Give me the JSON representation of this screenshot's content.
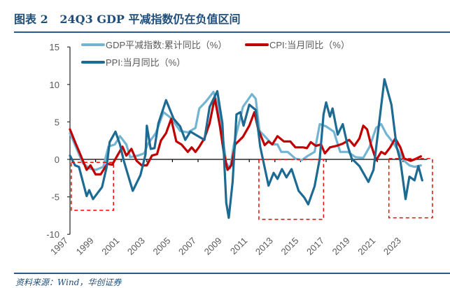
{
  "title": "图表 2   24Q3 GDP 平减指数仍在负值区间",
  "source": "资料来源：Wind，华创证券",
  "chart_data": {
    "type": "line",
    "title": "24Q3 GDP 平减指数仍在负值区间",
    "xlabel": "",
    "ylabel": "",
    "xlim": [
      1997,
      2025
    ],
    "ylim": [
      -10,
      15
    ],
    "yticks": [
      "15",
      "10",
      "5",
      "0",
      "-5",
      "-10"
    ],
    "ytick_values": [
      15,
      10,
      5,
      0,
      -5,
      -10
    ],
    "xticks": [
      "1997",
      "1999",
      "2001",
      "2003",
      "2005",
      "2007",
      "2009",
      "2011",
      "2013",
      "2015",
      "2017",
      "2019",
      "2021",
      "2023"
    ],
    "xtick_values": [
      1997,
      1999,
      2001,
      2003,
      2005,
      2007,
      2009,
      2011,
      2013,
      2015,
      2017,
      2019,
      2021,
      2023
    ],
    "legend_position": "top-left",
    "series": [
      {
        "name": "GDP平减指数:累计同比（%）",
        "color": "#74b4d3",
        "x": [
          1997,
          1997.5,
          1998,
          1998.5,
          1999,
          1999.6,
          2000,
          2000.5,
          2000.9,
          2001.4,
          2001.7,
          2002.3,
          2002.8,
          2003.1,
          2003.7,
          2004.3,
          2004.9,
          2005.6,
          2006.2,
          2006.8,
          2007.1,
          2007.6,
          2008.2,
          2008.6,
          2008.9,
          2009.2,
          2009.5,
          2009.8,
          2010.5,
          2011.2,
          2011.5,
          2011.8,
          2012.2,
          2012.8,
          2013.2,
          2013.5,
          2014.0,
          2014.6,
          2015.1,
          2015.6,
          2016.1,
          2016.5,
          2017.0,
          2017.6,
          2018.1,
          2018.7,
          2019.3,
          2019.9,
          2020.4,
          2020.9,
          2021.3,
          2021.7,
          2022.2,
          2022.7,
          2023.1,
          2023.5,
          2023.9,
          2024.4
        ],
        "values": [
          3.5,
          1.5,
          -0.5,
          -1.2,
          -1.4,
          -1.0,
          1.7,
          2.0,
          3.1,
          2.0,
          0.3,
          0.5,
          0.8,
          2.1,
          3.5,
          6.3,
          5.5,
          3.8,
          3.6,
          4.2,
          6.8,
          7.7,
          9.0,
          7.0,
          3.3,
          -0.5,
          -1.2,
          2.0,
          7.0,
          8.7,
          8.1,
          3.8,
          3.1,
          2.0,
          2.0,
          1.0,
          1.0,
          0.1,
          -0.1,
          0.5,
          1.0,
          4.7,
          4.4,
          3.7,
          1.0,
          1.0,
          0.3,
          0.2,
          1.7,
          4.2,
          4.7,
          3.4,
          2.3,
          1.0,
          -0.2,
          -0.8,
          -1.0,
          -0.8
        ]
      },
      {
        "name": "CPI:当月同比（%）",
        "color": "#c00000",
        "x": [
          1997,
          1997.4,
          1997.8,
          1998.3,
          1998.6,
          1999,
          1999.4,
          1999.9,
          2000.3,
          2000.7,
          2001.1,
          2001.4,
          2001.8,
          2002.2,
          2002.6,
          2003.0,
          2003.4,
          2003.8,
          2004.1,
          2004.5,
          2004.9,
          2005.3,
          2005.7,
          2006.2,
          2006.5,
          2006.8,
          2007.1,
          2007.5,
          2007.9,
          2008.3,
          2008.7,
          2009.0,
          2009.3,
          2009.6,
          2009.9,
          2010.5,
          2011.0,
          2011.4,
          2011.7,
          2012.2,
          2012.5,
          2012.8,
          2013.2,
          2013.7,
          2014.2,
          2014.6,
          2015.2,
          2015.5,
          2015.8,
          2016.2,
          2016.6,
          2016.9,
          2017.3,
          2017.8,
          2018.3,
          2018.8,
          2019.2,
          2019.6,
          2019.9,
          2020.2,
          2020.5,
          2020.9,
          2021.3,
          2021.6,
          2022.0,
          2022.4,
          2022.8,
          2023.1,
          2023.6,
          2023.9,
          2024.4
        ],
        "values": [
          4.0,
          2.3,
          0.7,
          -1.4,
          -0.8,
          -2.0,
          -2.0,
          -0.6,
          -0.7,
          0.5,
          1.7,
          0.5,
          1.4,
          -0.2,
          -0.8,
          -0.8,
          0.5,
          0.7,
          2.5,
          3.5,
          5.4,
          2.4,
          2.0,
          1.0,
          1.6,
          1.0,
          1.7,
          2.8,
          4.8,
          8.2,
          4.5,
          1.0,
          -1.4,
          -0.8,
          2.0,
          3.0,
          4.5,
          6.3,
          4.0,
          1.9,
          2.4,
          2.0,
          3.1,
          2.4,
          2.4,
          1.6,
          1.6,
          1.5,
          2.3,
          1.8,
          2.0,
          0.8,
          1.6,
          1.8,
          2.1,
          2.6,
          1.8,
          2.8,
          4.5,
          4.0,
          2.0,
          -0.1,
          1.0,
          0.7,
          1.6,
          2.8,
          1.6,
          0.1,
          -0.2,
          0.0,
          0.4
        ]
      },
      {
        "name": "PPI:当月同比（%）",
        "color": "#1d6b92",
        "x": [
          1997,
          1997.4,
          1997.7,
          1998.3,
          1998.5,
          1998.8,
          1999.5,
          1999.85,
          2000.1,
          2000.55,
          2000.9,
          2001.2,
          2001.9,
          2002.5,
          2002.9,
          2003.0,
          2003.3,
          2003.6,
          2003.9,
          2004.5,
          2005.1,
          2005.6,
          2006.0,
          2006.4,
          2006.8,
          2007.5,
          2007.9,
          2008.5,
          2008.9,
          2009.2,
          2009.4,
          2009.7,
          2010.0,
          2010.3,
          2010.55,
          2011.0,
          2011.5,
          2011.85,
          2012.5,
          2012.9,
          2013.2,
          2013.55,
          2013.9,
          2014.3,
          2014.85,
          2015.3,
          2015.6,
          2016.1,
          2016.5,
          2016.8,
          2017.0,
          2017.3,
          2017.5,
          2017.9,
          2018.3,
          2018.7,
          2019.0,
          2019.6,
          2020.3,
          2020.7,
          2021.0,
          2021.55,
          2022.1,
          2022.5,
          2022.8,
          2023.2,
          2023.5,
          2023.9,
          2024.2,
          2024.5
        ],
        "values": [
          0.5,
          -0.8,
          -1.0,
          -4.9,
          -4.1,
          -5.3,
          -3.7,
          -1.1,
          2.3,
          3.7,
          2.0,
          -0.2,
          -4.2,
          -2.1,
          0.7,
          4.5,
          1.4,
          1.5,
          4.8,
          7.9,
          5.4,
          4.4,
          2.6,
          3.7,
          3.3,
          2.6,
          7.0,
          9.1,
          4.8,
          -5.8,
          -7.8,
          -3.0,
          6.0,
          6.3,
          4.5,
          7.3,
          6.6,
          1.7,
          -3.5,
          -1.8,
          -2.6,
          -1.3,
          -2.4,
          -1.3,
          -4.2,
          -5.1,
          -6.0,
          -3.6,
          0.1,
          6.0,
          7.6,
          5.7,
          6.8,
          3.3,
          4.7,
          1.7,
          0.1,
          -0.9,
          -3.0,
          -1.4,
          2.9,
          10.7,
          7.3,
          1.7,
          -0.2,
          -5.3,
          -2.3,
          -2.8,
          -0.9,
          -2.8
        ]
      }
    ],
    "annotations": [
      {
        "type": "dashed-box",
        "color": "#ff0000",
        "x_range": [
          1997.1,
          2000.4
        ],
        "y_range": [
          -6.8,
          -0.4
        ]
      },
      {
        "type": "dashed-box",
        "color": "#ff0000",
        "x_range": [
          2011.75,
          2016.8
        ],
        "y_range": [
          -8.0,
          0.0
        ]
      },
      {
        "type": "dashed-box",
        "color": "#ff0000",
        "x_range": [
          2021.9,
          2025.3
        ],
        "y_range": [
          -7.8,
          0.1
        ]
      }
    ]
  }
}
